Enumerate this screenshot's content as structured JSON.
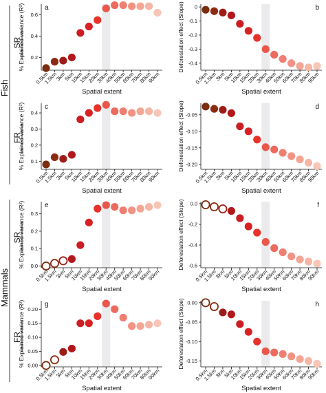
{
  "groups": [
    "Fish",
    "Mammals"
  ],
  "rows": [
    "SR",
    "FR",
    "SR",
    "FR"
  ],
  "x_categories": [
    "0.5km",
    "1.5km",
    "3km",
    "5km",
    "10km",
    "15km",
    "20km",
    "30km",
    "40km",
    "50km",
    "60km",
    "70km",
    "80km",
    "90km"
  ],
  "highlight_category": "30km",
  "point_colors": [
    "#7a2e10",
    "#8c2a12",
    "#9e1c18",
    "#b2181b",
    "#cb1d22",
    "#d92123",
    "#e5322b",
    "#e9564a",
    "#ec6a5e",
    "#ef7f71",
    "#f29283",
    "#f4a594",
    "#f6b6a5",
    "#f8c6b6"
  ],
  "chart_data": [
    {
      "panel": "a",
      "type": "scatter",
      "row": "SR",
      "group": "Fish",
      "xlabel": "Spatial extent",
      "ylabel": "% Explained variance (R²)",
      "ylim": [
        0.08,
        0.7
      ],
      "yticks": [
        "0.2",
        "0.4",
        "0.6"
      ],
      "ytick_values": [
        0.2,
        0.4,
        0.6
      ],
      "values": [
        0.1,
        0.16,
        0.17,
        0.2,
        0.43,
        0.49,
        0.55,
        0.66,
        0.69,
        0.69,
        0.68,
        0.68,
        0.68,
        0.62
      ],
      "open": [
        false,
        false,
        false,
        false,
        false,
        false,
        false,
        false,
        false,
        false,
        false,
        false,
        false,
        false
      ]
    },
    {
      "panel": "b",
      "type": "scatter",
      "row": "SR",
      "group": "Fish",
      "xlabel": "Spatial extent",
      "ylabel": "Deforestation effect (Slope)",
      "ylim": [
        -0.45,
        0.02
      ],
      "yticks": [
        "0",
        "-0.1",
        "-0.2",
        "-0.3",
        "-0.4"
      ],
      "ytick_values": [
        0,
        -0.1,
        -0.2,
        -0.3,
        -0.4
      ],
      "values": [
        -0.02,
        -0.03,
        -0.04,
        -0.06,
        -0.12,
        -0.17,
        -0.22,
        -0.3,
        -0.34,
        -0.37,
        -0.4,
        -0.42,
        -0.43,
        -0.42
      ],
      "open": [
        false,
        false,
        false,
        false,
        false,
        false,
        false,
        false,
        false,
        false,
        false,
        false,
        false,
        false
      ]
    },
    {
      "panel": "c",
      "type": "scatter",
      "row": "FR",
      "group": "Fish",
      "xlabel": "Spatial extent",
      "ylabel": "% Explained variance (R²)",
      "ylim": [
        0.05,
        0.46
      ],
      "yticks": [
        "0.1",
        "0.2",
        "0.3",
        "0.4"
      ],
      "ytick_values": [
        0.1,
        0.2,
        0.3,
        0.4
      ],
      "values": [
        0.08,
        0.125,
        0.115,
        0.14,
        0.36,
        0.4,
        0.43,
        0.45,
        0.41,
        0.41,
        0.4,
        0.41,
        0.41,
        0.4
      ],
      "open": [
        false,
        false,
        false,
        false,
        false,
        false,
        false,
        false,
        false,
        false,
        false,
        false,
        false,
        false
      ]
    },
    {
      "panel": "d",
      "type": "scatter",
      "row": "FR",
      "group": "Fish",
      "xlabel": "Spatial extent",
      "ylabel": "Deforestation effect (Slope)",
      "ylim": [
        -0.215,
        -0.015
      ],
      "yticks": [
        "-0.05",
        "-0.10",
        "-0.15",
        "-0.20"
      ],
      "ytick_values": [
        -0.05,
        -0.1,
        -0.15,
        -0.2
      ],
      "values": [
        -0.025,
        -0.032,
        -0.035,
        -0.045,
        -0.085,
        -0.1,
        -0.125,
        -0.148,
        -0.155,
        -0.165,
        -0.175,
        -0.185,
        -0.195,
        -0.205
      ],
      "open": [
        false,
        false,
        false,
        false,
        false,
        false,
        false,
        false,
        false,
        false,
        false,
        false,
        false,
        false
      ]
    },
    {
      "panel": "e",
      "type": "scatter",
      "row": "SR",
      "group": "Mammals",
      "xlabel": "Spatial extent",
      "ylabel": "% Explained variance (R²)",
      "ylim": [
        -0.01,
        0.37
      ],
      "yticks": [
        "0.0",
        "0.1",
        "0.2",
        "0.3"
      ],
      "ytick_values": [
        0,
        0.1,
        0.2,
        0.3
      ],
      "values": [
        0.0,
        0.015,
        0.03,
        0.04,
        0.12,
        0.25,
        0.33,
        0.35,
        0.34,
        0.32,
        0.32,
        0.33,
        0.34,
        0.35
      ],
      "open": [
        true,
        true,
        true,
        false,
        false,
        false,
        false,
        false,
        false,
        false,
        false,
        false,
        false,
        false
      ]
    },
    {
      "panel": "f",
      "type": "scatter",
      "row": "SR",
      "group": "Mammals",
      "xlabel": "Spatial extent",
      "ylabel": "Deforestation effect (Slope)",
      "ylim": [
        -0.62,
        0.02
      ],
      "yticks": [
        "0.0",
        "-0.2",
        "-0.4",
        "-0.6"
      ],
      "ytick_values": [
        0,
        -0.2,
        -0.4,
        -0.6
      ],
      "values": [
        -0.01,
        -0.03,
        -0.05,
        -0.07,
        -0.14,
        -0.22,
        -0.28,
        -0.37,
        -0.43,
        -0.47,
        -0.51,
        -0.54,
        -0.56,
        -0.58
      ],
      "open": [
        true,
        true,
        true,
        false,
        false,
        false,
        false,
        false,
        false,
        false,
        false,
        false,
        false,
        false
      ]
    },
    {
      "panel": "g",
      "type": "scatter",
      "row": "FR",
      "group": "Mammals",
      "xlabel": "Spatial extent",
      "ylabel": "% Explained variance (R²)",
      "ylim": [
        -0.005,
        0.23
      ],
      "yticks": [
        "0.00",
        "0.05",
        "0.10",
        "0.15",
        "0.20"
      ],
      "ytick_values": [
        0,
        0.05,
        0.1,
        0.15,
        0.2
      ],
      "values": [
        0.0,
        0.02,
        0.048,
        0.06,
        0.15,
        0.15,
        0.175,
        0.22,
        0.2,
        0.17,
        0.14,
        0.14,
        0.145,
        0.15
      ],
      "open": [
        true,
        true,
        false,
        false,
        false,
        false,
        false,
        false,
        false,
        false,
        false,
        false,
        false,
        false
      ]
    },
    {
      "panel": "h",
      "type": "scatter",
      "row": "FR",
      "group": "Mammals",
      "xlabel": "Spatial extent",
      "ylabel": "Deforestation effect (Slope)",
      "ylim": [
        -0.165,
        0.005
      ],
      "yticks": [
        "0.00",
        "-0.05",
        "-0.10",
        "-0.15"
      ],
      "ytick_values": [
        0,
        -0.05,
        -0.1,
        -0.15
      ],
      "values": [
        0.0,
        -0.01,
        -0.025,
        -0.03,
        -0.055,
        -0.075,
        -0.1,
        -0.125,
        -0.128,
        -0.132,
        -0.138,
        -0.145,
        -0.15,
        -0.157
      ],
      "open": [
        true,
        true,
        false,
        false,
        false,
        false,
        false,
        false,
        false,
        false,
        false,
        false,
        false,
        false
      ]
    }
  ]
}
